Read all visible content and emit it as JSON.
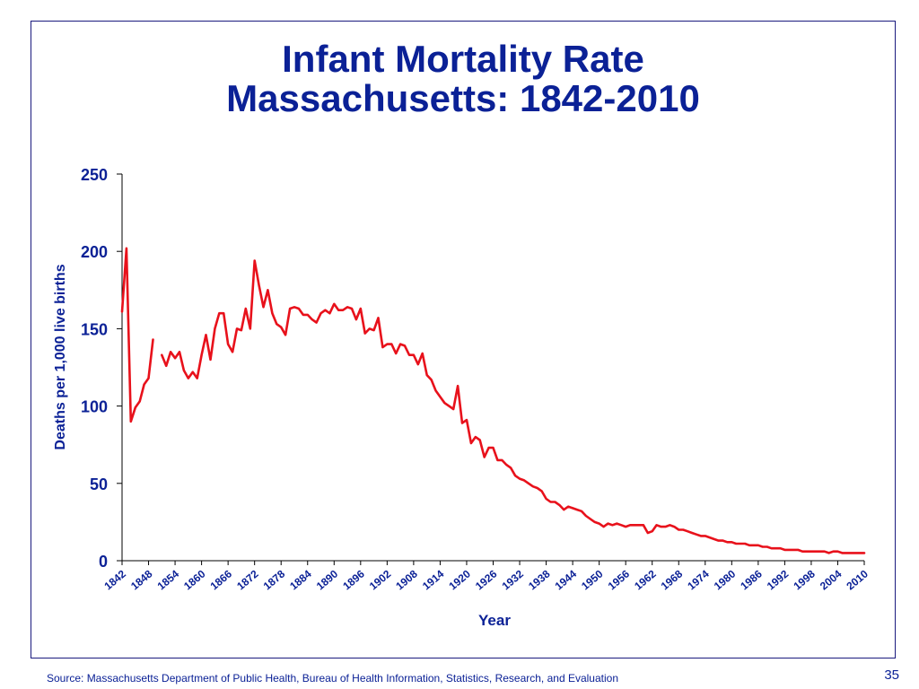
{
  "slide": {
    "title_line1": "Infant Mortality Rate",
    "title_line2": "Massachusetts: 1842-2010",
    "source": "Source:  Massachusetts Department of Public Health, Bureau of Health Information, Statistics, Research, and Evaluation",
    "page_number": "35"
  },
  "colors": {
    "line": "#e8111b",
    "text": "#0b2196",
    "axis": "#000000",
    "frame": "#1a1a7e"
  },
  "chart_data": {
    "type": "line",
    "title": "",
    "xlabel": "Year",
    "ylabel": "Deaths per 1,000 live births",
    "xlim": [
      1842,
      2010
    ],
    "ylim": [
      0,
      250
    ],
    "y_ticks": [
      0,
      50,
      100,
      150,
      200,
      250
    ],
    "x_tick_labels": [
      "1842",
      "1848",
      "1854",
      "1860",
      "1866",
      "1872",
      "1878",
      "1884",
      "1890",
      "1896",
      "1902",
      "1908",
      "1914",
      "1920",
      "1926",
      "1932",
      "1938",
      "1944",
      "1950",
      "1956",
      "1962",
      "1968",
      "1974",
      "1980",
      "1986",
      "1992",
      "1998",
      "2004",
      "2010"
    ],
    "grid": false,
    "legend": "none",
    "series": [
      {
        "segments": [
          {
            "x": [
              1842,
              1843,
              1844,
              1845,
              1846,
              1847,
              1848,
              1849
            ],
            "y": [
              161,
              202,
              90,
              99,
              103,
              114,
              118,
              143
            ]
          },
          {
            "x": [
              1851,
              1852,
              1853,
              1854,
              1855,
              1856,
              1857,
              1858,
              1859,
              1860,
              1861,
              1862,
              1863,
              1864,
              1865,
              1866,
              1867,
              1868,
              1869,
              1870,
              1871,
              1872,
              1873,
              1874,
              1875,
              1876,
              1877,
              1878,
              1879,
              1880,
              1881,
              1882,
              1883,
              1884,
              1885,
              1886,
              1887,
              1888,
              1889,
              1890,
              1891,
              1892,
              1893,
              1894,
              1895,
              1896,
              1897,
              1898,
              1899,
              1900,
              1901,
              1902,
              1903,
              1904,
              1905,
              1906,
              1907,
              1908,
              1909,
              1910,
              1911,
              1912,
              1913,
              1914,
              1915,
              1916,
              1917,
              1918,
              1919,
              1920,
              1921,
              1922,
              1923,
              1924,
              1925,
              1926,
              1927,
              1928,
              1929,
              1930,
              1931,
              1932,
              1933,
              1934,
              1935,
              1936,
              1937,
              1938,
              1939,
              1940,
              1941,
              1942,
              1943,
              1944,
              1945,
              1946,
              1947,
              1948,
              1949,
              1950,
              1951,
              1952,
              1953,
              1954,
              1955,
              1956,
              1957,
              1958,
              1959,
              1960,
              1961,
              1962,
              1963,
              1964,
              1965,
              1966,
              1967,
              1968,
              1969,
              1970,
              1971,
              1972,
              1973,
              1974,
              1975,
              1976,
              1977,
              1978,
              1979,
              1980,
              1981,
              1982,
              1983,
              1984,
              1985,
              1986,
              1987,
              1988,
              1989,
              1990,
              1991,
              1992,
              1993,
              1994,
              1995,
              1996,
              1997,
              1998,
              1999,
              2000,
              2001,
              2002,
              2003,
              2004,
              2005,
              2006,
              2007,
              2008,
              2009,
              2010
            ],
            "y": [
              133,
              126,
              135,
              131,
              135,
              123,
              118,
              122,
              118,
              133,
              146,
              130,
              150,
              160,
              160,
              140,
              135,
              150,
              149,
              163,
              150,
              194,
              178,
              164,
              175,
              160,
              153,
              151,
              146,
              163,
              164,
              163,
              159,
              159,
              156,
              154,
              160,
              162,
              160,
              166,
              162,
              162,
              164,
              163,
              156,
              163,
              147,
              150,
              149,
              157,
              138,
              140,
              140,
              134,
              140,
              139,
              133,
              133,
              127,
              134,
              120,
              117,
              110,
              106,
              102,
              100,
              98,
              113,
              89,
              91,
              76,
              80,
              78,
              67,
              73,
              73,
              65,
              65,
              62,
              60,
              55,
              53,
              52,
              50,
              48,
              47,
              45,
              40,
              38,
              38,
              36,
              33,
              35,
              34,
              33,
              32,
              29,
              27,
              25,
              24,
              22,
              24,
              23,
              24,
              23,
              22,
              23,
              23,
              23,
              23,
              18,
              19,
              23,
              22,
              22,
              23,
              22,
              20,
              20,
              19,
              18,
              17,
              16,
              16,
              15,
              14,
              13,
              13,
              12,
              12,
              11,
              11,
              11,
              10,
              10,
              10,
              9,
              9,
              8,
              8,
              8,
              7,
              7,
              7,
              7,
              6,
              6,
              6,
              6,
              6,
              6,
              5,
              6,
              6,
              5,
              5,
              5,
              5,
              5,
              5
            ]
          }
        ]
      }
    ]
  }
}
